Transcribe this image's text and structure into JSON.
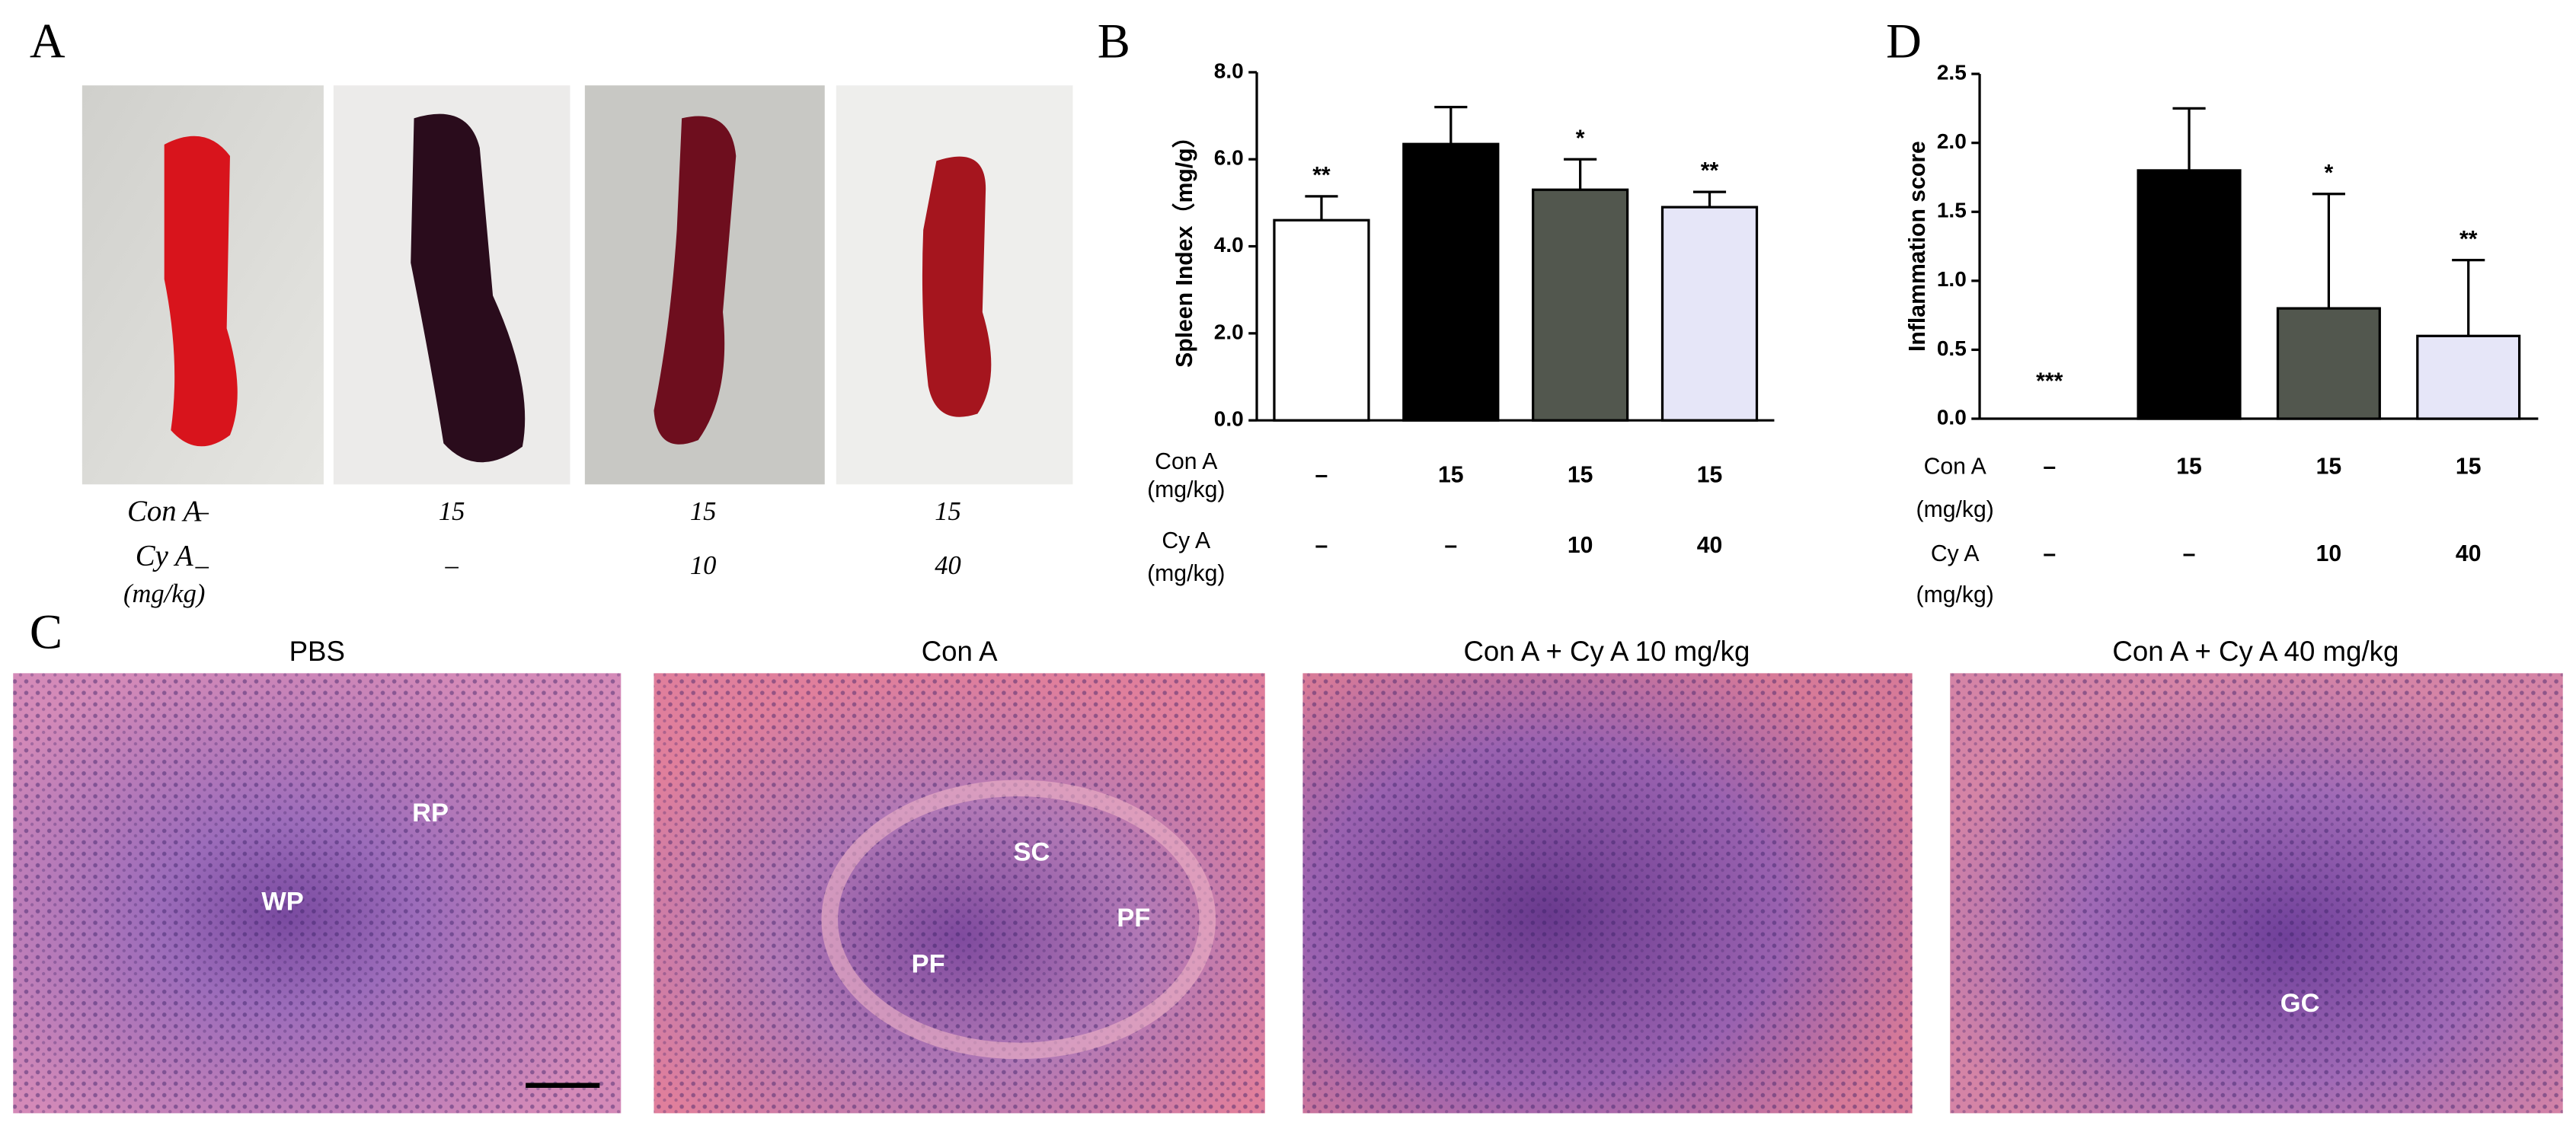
{
  "panel_labels": [
    "A",
    "B",
    "C",
    "D"
  ],
  "panel_a": {
    "con_a_label": "Con A",
    "cy_a_label": "Cy A",
    "unit": "(mg/kg)",
    "con_a": [
      "–",
      "15",
      "15",
      "15"
    ],
    "cy_a": [
      "–",
      "–",
      "10",
      "40"
    ]
  },
  "panel_c": {
    "titles": [
      "PBS",
      "Con A",
      "Con A + Cy A 10 mg/kg",
      "Con A + Cy A 40 mg/kg"
    ],
    "annotations": [
      "RP",
      "WP",
      "SC",
      "PF",
      "PF",
      "GC"
    ]
  },
  "chart_data": [
    {
      "type": "bar",
      "y_label": "Spleen Index（mg/g）",
      "values": [
        4.6,
        6.35,
        5.3,
        4.9
      ],
      "errors": [
        0.55,
        0.85,
        0.7,
        0.35
      ],
      "colors": [
        "#ffffff",
        "#000000",
        "#52574e",
        "#e6e6f8"
      ],
      "significance": [
        "**",
        null,
        "*",
        "**"
      ],
      "ylim": [
        0,
        8
      ],
      "yticks": [
        {
          "value": 0,
          "label": "0.0"
        },
        {
          "value": 2,
          "label": "2.0"
        },
        {
          "value": 4,
          "label": "4.0"
        },
        {
          "value": 6,
          "label": "6.0"
        },
        {
          "value": 8,
          "label": "8.0"
        }
      ],
      "dose_table": [
        {
          "label": "Con A",
          "unit": "(mg/kg)",
          "values": [
            "–",
            "15",
            "15",
            "15"
          ]
        },
        {
          "label": "Cy A",
          "unit": "(mg/kg)",
          "values": [
            "–",
            "–",
            "10",
            "40"
          ]
        }
      ]
    },
    {
      "type": "bar",
      "y_label": "Inflammation score",
      "values": [
        0,
        1.8,
        0.8,
        0.6
      ],
      "errors": [
        0,
        0.45,
        0.83,
        0.55
      ],
      "colors": [
        "#ffffff",
        "#000000",
        "#52574e",
        "#e6e6f8"
      ],
      "significance": [
        "***",
        null,
        "*",
        "**"
      ],
      "ylim": [
        0,
        2.5
      ],
      "yticks": [
        {
          "value": 0,
          "label": "0.0"
        },
        0.5,
        {
          "value": 1,
          "label": "1.0"
        },
        1.5,
        {
          "value": 2,
          "label": "2.0"
        },
        2.5
      ],
      "dose_table": [
        {
          "label": "Con A",
          "unit": "(mg/kg)",
          "values": [
            "–",
            "15",
            "15",
            "15"
          ]
        },
        {
          "label": "Cy A",
          "unit": "(mg/kg)",
          "values": [
            "–",
            "–",
            "10",
            "40"
          ]
        }
      ]
    }
  ]
}
